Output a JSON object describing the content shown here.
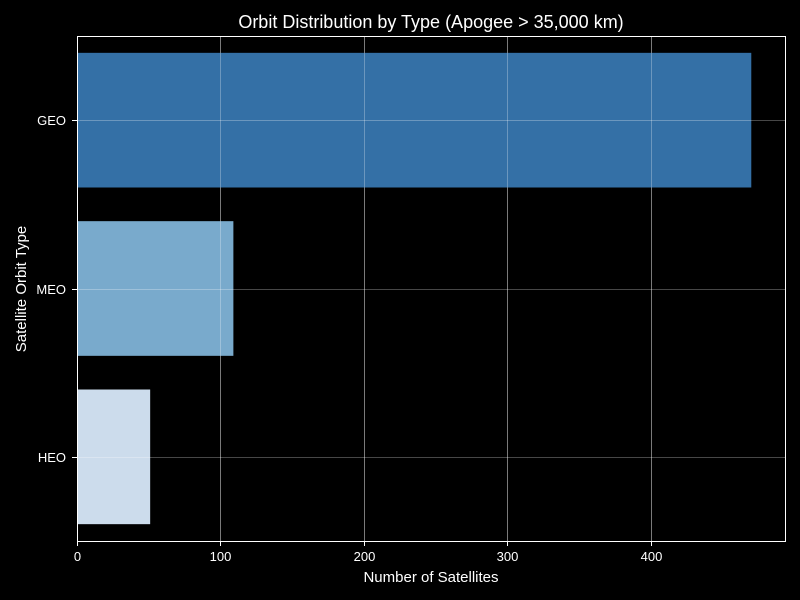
{
  "chart_data": {
    "type": "bar",
    "orientation": "horizontal",
    "title": "Orbit Distribution by Type (Apogee > 35,000 km)",
    "xlabel": "Number of Satellites",
    "ylabel": "Satellite Orbit Type",
    "categories": [
      "GEO",
      "MEO",
      "HEO"
    ],
    "values": [
      470,
      109,
      51
    ],
    "bar_colors": [
      "#3470a6",
      "#79aacc",
      "#ccdcec"
    ],
    "xlim": [
      0,
      493.5
    ],
    "xticks": [
      0,
      100,
      200,
      300,
      400
    ],
    "grid": true,
    "background": "#000000",
    "text_color": "#ffffff"
  }
}
